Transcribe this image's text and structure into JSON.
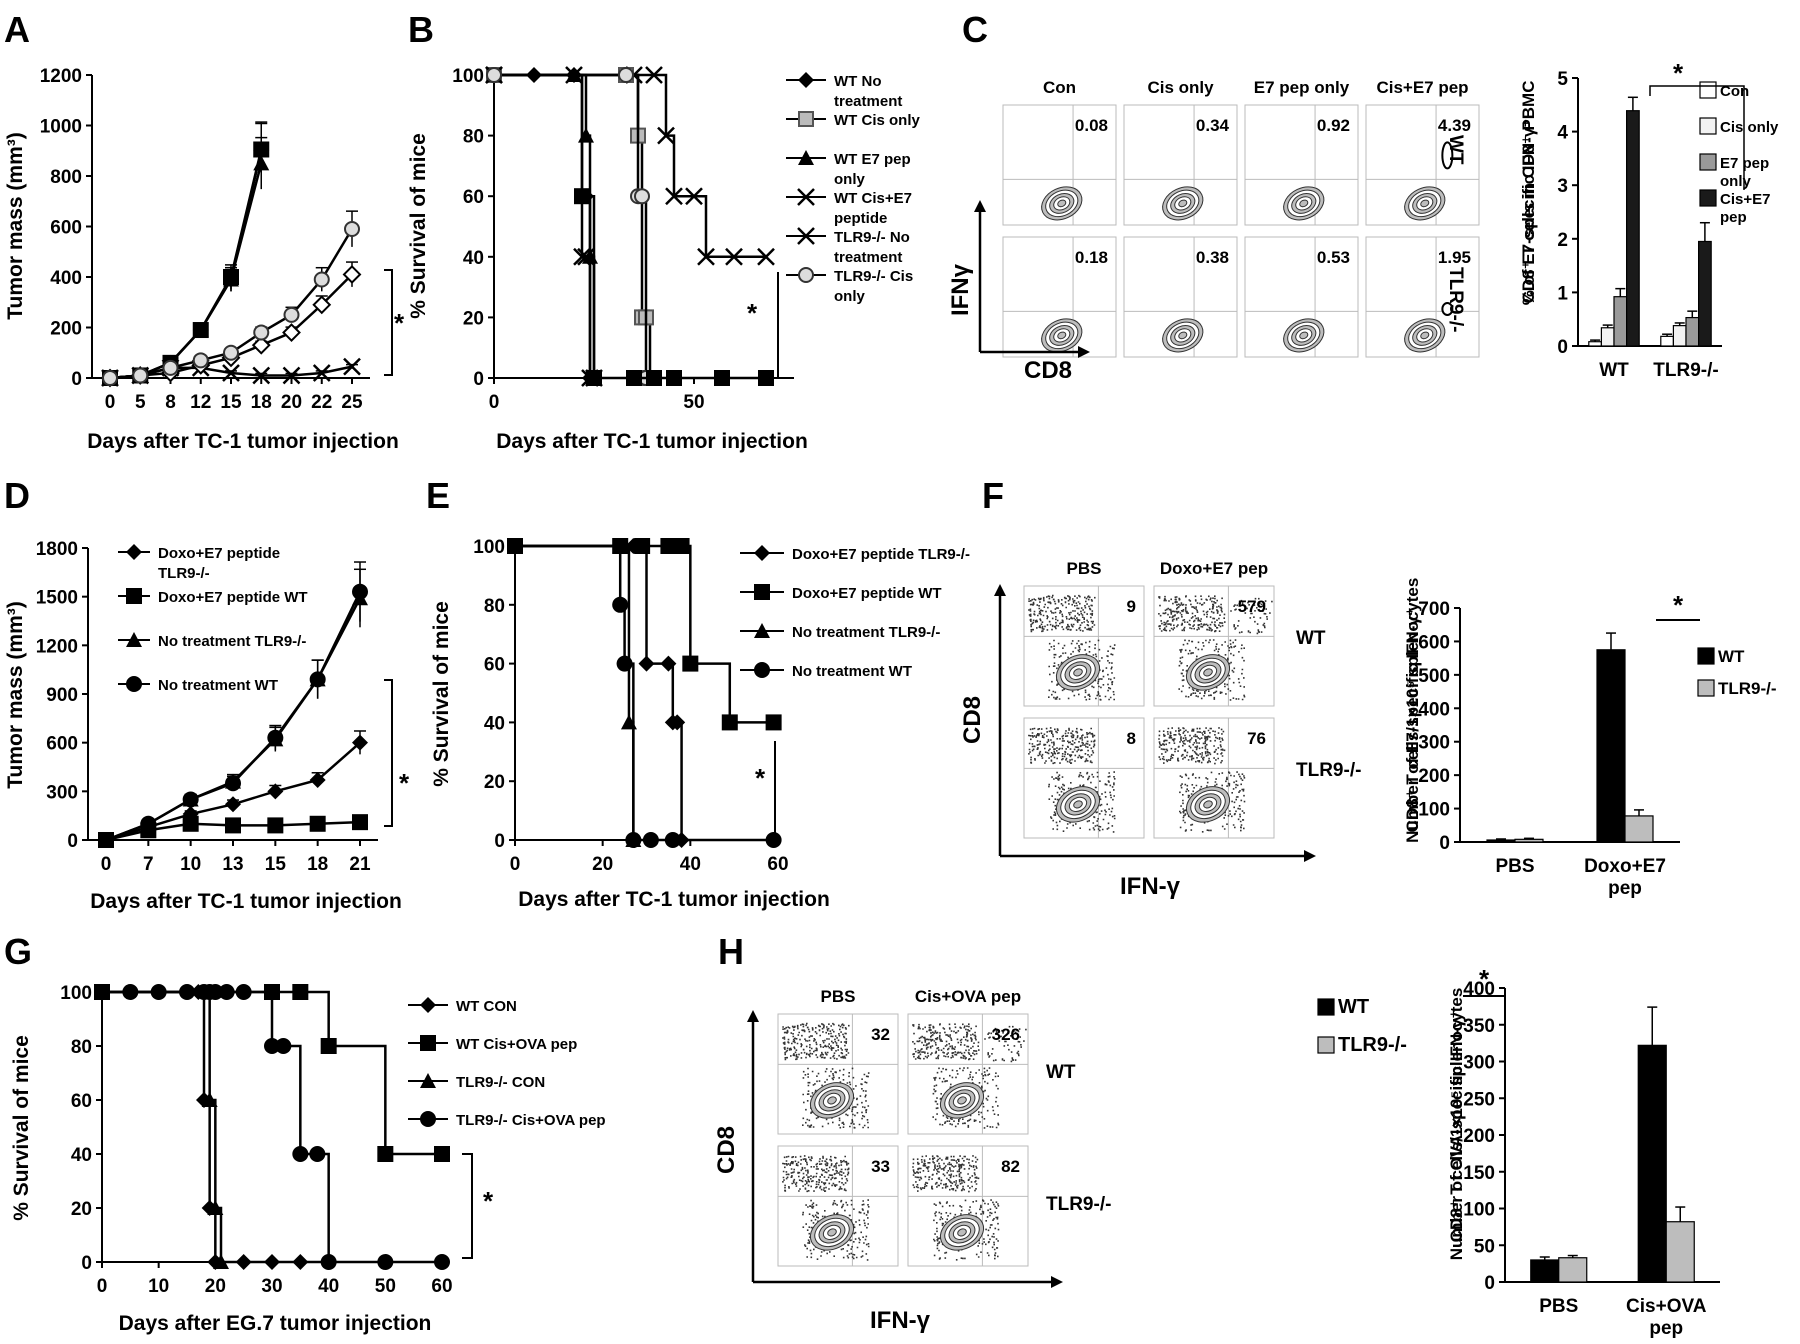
{
  "chart_data": [
    {
      "panel": "A",
      "type": "line",
      "xlabel": "Days after TC-1 tumor injection",
      "ylabel": "Tumor mass (mm³)",
      "x": [
        "0",
        "5",
        "8",
        "12",
        "15",
        "18",
        "20",
        "22",
        "25"
      ],
      "ylim": [
        0,
        1200
      ],
      "yticks": [
        "0",
        "200",
        "400",
        "600",
        "800",
        "1000",
        "1200"
      ],
      "series": [
        {
          "marker": "diamond",
          "values": [
            0,
            10,
            60,
            190,
            390,
            900,
            null,
            null,
            null
          ]
        },
        {
          "marker": "square",
          "values": [
            0,
            10,
            60,
            190,
            400,
            905,
            null,
            null,
            null
          ]
        },
        {
          "marker": "triangle",
          "values": [
            0,
            10,
            60,
            190,
            390,
            850,
            null,
            null,
            null
          ]
        },
        {
          "marker": "x",
          "values": [
            0,
            10,
            40,
            40,
            20,
            10,
            10,
            20,
            45
          ]
        },
        {
          "marker": "diamond-open",
          "values": [
            0,
            10,
            20,
            50,
            80,
            130,
            180,
            290,
            410
          ]
        },
        {
          "marker": "circle-open",
          "values": [
            0,
            10,
            40,
            70,
            100,
            180,
            250,
            390,
            590
          ]
        }
      ],
      "annotations": [
        "*"
      ]
    },
    {
      "panel": "B",
      "type": "line",
      "xlabel": "Days after TC-1 tumor injection",
      "ylabel": "% Survival of mice",
      "x_ticks": [
        "0",
        "50"
      ],
      "xlim": [
        0,
        75
      ],
      "ylim": [
        0,
        100
      ],
      "yticks": [
        "0",
        "20",
        "40",
        "60",
        "80",
        "100"
      ],
      "legend": [
        "WT No treatment",
        "WT Cis only",
        "WT E7 pep only",
        "WT Cis+E7 peptide",
        "TLR9-/- No treatment",
        "TLR9-/- Cis only"
      ],
      "series": [
        {
          "name": "WT No treatment",
          "marker": "diamond",
          "x": [
            0,
            10,
            20,
            22,
            23,
            24,
            25
          ],
          "values": [
            100,
            100,
            100,
            60,
            60,
            0,
            0
          ]
        },
        {
          "name": "WT Cis only",
          "marker": "square-open",
          "x": [
            0,
            33,
            36,
            37,
            38,
            39
          ],
          "values": [
            100,
            100,
            80,
            20,
            20,
            0
          ]
        },
        {
          "name": "WT E7 pep only",
          "marker": "triangle",
          "x": [
            0,
            20,
            23,
            24,
            25
          ],
          "values": [
            100,
            100,
            80,
            40,
            0
          ]
        },
        {
          "name": "WT Cis+E7 peptide",
          "marker": "x",
          "x": [
            0,
            35,
            40,
            43,
            45,
            50,
            53,
            60,
            68
          ],
          "values": [
            100,
            100,
            100,
            80,
            60,
            60,
            40,
            40,
            40
          ]
        },
        {
          "name": "TLR9-/- No treatment",
          "marker": "x",
          "x": [
            0,
            20,
            22,
            23,
            24,
            25
          ],
          "values": [
            100,
            100,
            40,
            40,
            0,
            0
          ]
        },
        {
          "name": "TLR9-/- Cis only",
          "marker": "circle-open",
          "x": [
            0,
            33,
            36,
            37,
            38
          ],
          "values": [
            100,
            100,
            60,
            60,
            0
          ]
        },
        {
          "name": "",
          "marker": "square",
          "x": [
            22,
            25,
            35,
            40,
            45,
            57,
            68
          ],
          "values": [
            60,
            0,
            0,
            0,
            0,
            0,
            0
          ]
        }
      ],
      "annotations": [
        "*"
      ]
    },
    {
      "panel": "C",
      "type": "bar",
      "flow_columns": [
        "Con",
        "Cis only",
        "E7 pep only",
        "Cis+E7 pep"
      ],
      "flow_rows": [
        "WT",
        "TLR9-/-"
      ],
      "flow_values": [
        [
          "0.08",
          "0.34",
          "0.92",
          "4.39"
        ],
        [
          "0.18",
          "0.38",
          "0.53",
          "1.95"
        ]
      ],
      "flow_xlabel": "CD8",
      "flow_ylabel": "IFNγ",
      "categories": [
        "WT",
        "TLR9-/-"
      ],
      "ylabel": "% of E7-specific IFN-γ⁺ CD8⁺ T cells in CD8⁺ PBMC",
      "ylim": [
        0,
        5
      ],
      "yticks": [
        "0",
        "1",
        "2",
        "3",
        "4",
        "5"
      ],
      "series": [
        {
          "name": "Con",
          "color": "#ffffff",
          "values": [
            0.08,
            0.18
          ],
          "err": [
            0.03,
            0.04
          ]
        },
        {
          "name": "Cis only",
          "color": "#f2f2f2",
          "values": [
            0.34,
            0.38
          ],
          "err": [
            0.05,
            0.05
          ]
        },
        {
          "name": "E7 pep only",
          "color": "#9a9a9a",
          "values": [
            0.92,
            0.53
          ],
          "err": [
            0.15,
            0.12
          ]
        },
        {
          "name": "Cis+E7 pep",
          "color": "#1a1a1a",
          "values": [
            4.39,
            1.95
          ],
          "err": [
            0.25,
            0.35
          ]
        }
      ],
      "annotations": [
        "*"
      ]
    },
    {
      "panel": "D",
      "type": "line",
      "xlabel": "Days after TC-1 tumor injection",
      "ylabel": "Tumor mass (mm³)",
      "x": [
        "0",
        "7",
        "10",
        "13",
        "15",
        "18",
        "21"
      ],
      "ylim": [
        0,
        1800
      ],
      "yticks": [
        "0",
        "300",
        "600",
        "900",
        "1200",
        "1500",
        "1800"
      ],
      "legend": [
        "Doxo+E7 peptide TLR9-/-",
        "Doxo+E7 peptide WT",
        "No treatment TLR9-/-",
        "No treatment WT"
      ],
      "series": [
        {
          "name": "Doxo+E7 peptide TLR9-/-",
          "marker": "diamond",
          "values": [
            0,
            80,
            160,
            220,
            300,
            370,
            600
          ]
        },
        {
          "name": "Doxo+E7 peptide WT",
          "marker": "square",
          "values": [
            0,
            60,
            100,
            90,
            90,
            100,
            110
          ]
        },
        {
          "name": "No treatment TLR9-/-",
          "marker": "triangle",
          "values": [
            0,
            100,
            250,
            360,
            620,
            990,
            1490
          ]
        },
        {
          "name": "No treatment WT",
          "marker": "circle",
          "values": [
            0,
            100,
            250,
            350,
            630,
            990,
            1530
          ]
        }
      ],
      "annotations": [
        "*"
      ]
    },
    {
      "panel": "E",
      "type": "line",
      "xlabel": "Days after TC-1 tumor injection",
      "ylabel": "% Survival of mice",
      "x_ticks": [
        "0",
        "20",
        "40",
        "60"
      ],
      "xlim": [
        0,
        60
      ],
      "ylim": [
        0,
        100
      ],
      "yticks": [
        "0",
        "20",
        "40",
        "60",
        "80",
        "100"
      ],
      "legend": [
        "Doxo+E7 peptide TLR9-/-",
        "Doxo+E7 peptide WT",
        "No treatment TLR9-/-",
        "No treatment WT"
      ],
      "series": [
        {
          "name": "Doxo+E7 peptide TLR9-/-",
          "marker": "diamond",
          "x": [
            0,
            24,
            27,
            29,
            30,
            35,
            36,
            37,
            38
          ],
          "values": [
            100,
            100,
            100,
            100,
            60,
            60,
            40,
            40,
            0
          ]
        },
        {
          "name": "Doxo+E7 peptide WT",
          "marker": "square",
          "x": [
            0,
            24,
            29,
            35,
            38,
            40,
            49,
            59
          ],
          "values": [
            100,
            100,
            100,
            100,
            100,
            60,
            40,
            40
          ]
        },
        {
          "name": "No treatment TLR9-/-",
          "marker": "triangle",
          "x": [
            0,
            24,
            26,
            27
          ],
          "values": [
            100,
            100,
            40,
            0
          ]
        },
        {
          "name": "No treatment WT",
          "marker": "circle",
          "x": [
            0,
            24,
            25,
            27,
            31,
            36,
            59
          ],
          "values": [
            100,
            80,
            60,
            0,
            0,
            0,
            0
          ]
        }
      ],
      "annotations": [
        "*"
      ]
    },
    {
      "panel": "F",
      "type": "bar",
      "flow_columns": [
        "PBS",
        "Doxo+E7 pep"
      ],
      "flow_rows": [
        "WT",
        "TLR9-/-"
      ],
      "flow_values": [
        [
          "9",
          "579"
        ],
        [
          "8",
          "76"
        ]
      ],
      "flow_xlabel": "IFN-γ",
      "flow_ylabel": "CD8",
      "categories": [
        "PBS",
        "Doxo+E7 pep"
      ],
      "ylabel": "Number of E7-specific IFN-γ⁺ CD8⁺ T cells/1×10⁵ splenocytes",
      "ylim": [
        0,
        700
      ],
      "yticks": [
        "0",
        "100",
        "200",
        "300",
        "400",
        "500",
        "600",
        "700"
      ],
      "series": [
        {
          "name": "WT",
          "color": "#000000",
          "values": [
            6,
            575
          ],
          "err": [
            3,
            50
          ]
        },
        {
          "name": "TLR9-/-",
          "color": "#bdbdbd",
          "values": [
            8,
            78
          ],
          "err": [
            3,
            18
          ]
        }
      ],
      "annotations": [
        "*"
      ]
    },
    {
      "panel": "G",
      "type": "line",
      "xlabel": "Days after EG.7 tumor injection",
      "ylabel": "% Survival of mice",
      "x_ticks": [
        "0",
        "10",
        "20",
        "30",
        "40",
        "50",
        "60"
      ],
      "xlim": [
        0,
        60
      ],
      "ylim": [
        0,
        100
      ],
      "yticks": [
        "0",
        "20",
        "40",
        "60",
        "80",
        "100"
      ],
      "legend": [
        "WT CON",
        "WT Cis+OVA pep",
        "TLR9-/- CON",
        "TLR9-/- Cis+OVA pep"
      ],
      "series": [
        {
          "name": "WT CON",
          "marker": "diamond",
          "x": [
            0,
            17,
            18,
            19,
            20,
            25,
            30,
            35,
            40
          ],
          "values": [
            100,
            100,
            60,
            20,
            0,
            0,
            0,
            0,
            0
          ]
        },
        {
          "name": "WT Cis+OVA pep",
          "marker": "square",
          "x": [
            0,
            30,
            35,
            40,
            50,
            60
          ],
          "values": [
            100,
            100,
            100,
            80,
            40,
            40
          ]
        },
        {
          "name": "TLR9-/- CON",
          "marker": "triangle",
          "x": [
            0,
            19,
            20,
            21
          ],
          "values": [
            100,
            60,
            20,
            0
          ]
        },
        {
          "name": "TLR9-/- Cis+OVA pep",
          "marker": "circle",
          "x": [
            0,
            5,
            10,
            15,
            18,
            19,
            20,
            22,
            25,
            30,
            32,
            35,
            38,
            40,
            50,
            60
          ],
          "values": [
            100,
            100,
            100,
            100,
            100,
            100,
            100,
            100,
            100,
            80,
            80,
            40,
            40,
            0,
            0,
            0
          ]
        }
      ],
      "annotations": [
        "*"
      ]
    },
    {
      "panel": "H",
      "type": "bar",
      "flow_columns": [
        "PBS",
        "Cis+OVA pep"
      ],
      "flow_rows": [
        "WT",
        "TLR9-/-"
      ],
      "flow_values": [
        [
          "32",
          "326"
        ],
        [
          "33",
          "82"
        ]
      ],
      "flow_xlabel": "IFN-γ",
      "flow_ylabel": "CD8",
      "categories": [
        "PBS",
        "Cis+OVA pep"
      ],
      "ylabel": "Number of OVA-specific IFN-γ⁺ CD8⁺ T cells/1×10⁵ splenocytes",
      "ylim": [
        0,
        400
      ],
      "yticks": [
        "0",
        "50",
        "100",
        "150",
        "200",
        "250",
        "300",
        "350",
        "400"
      ],
      "series": [
        {
          "name": "WT",
          "color": "#000000",
          "values": [
            30,
            322
          ],
          "err": [
            4,
            52
          ]
        },
        {
          "name": "TLR9-/-",
          "color": "#bdbdbd",
          "values": [
            33,
            82
          ],
          "err": [
            3,
            20
          ]
        }
      ],
      "annotations": [
        "*"
      ]
    }
  ]
}
